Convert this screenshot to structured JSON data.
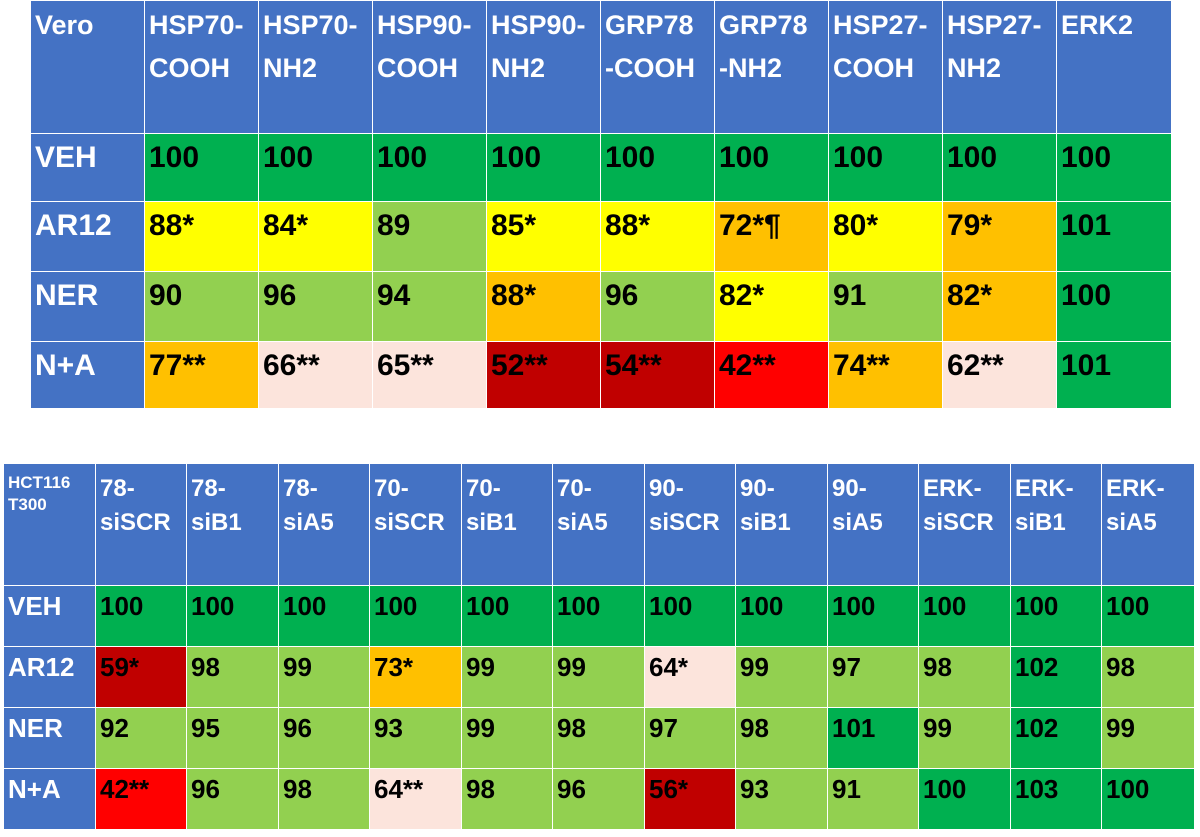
{
  "table1": {
    "corner": "Vero",
    "headers": [
      [
        "HSP70-",
        "COOH"
      ],
      [
        "HSP70-",
        "NH2"
      ],
      [
        "HSP90-",
        "COOH"
      ],
      [
        "HSP90-",
        "NH2"
      ],
      [
        "GRP78",
        "-COOH"
      ],
      [
        "GRP78",
        "-NH2"
      ],
      [
        "HSP27-",
        "COOH"
      ],
      [
        "HSP27-",
        "NH2"
      ],
      [
        "ERK2",
        ""
      ]
    ],
    "rows": [
      {
        "label": "VEH",
        "cells": [
          "100",
          "100",
          "100",
          "100",
          "100",
          "100",
          "100",
          "100",
          "100"
        ],
        "colors": [
          "dg",
          "dg",
          "dg",
          "dg",
          "dg",
          "dg",
          "dg",
          "dg",
          "dg"
        ]
      },
      {
        "label": "AR12",
        "cells": [
          "88*",
          "84*",
          "89",
          "85*",
          "88*",
          "72*¶",
          "80*",
          "79*",
          "101"
        ],
        "colors": [
          "y",
          "y",
          "lg",
          "y",
          "y",
          "o",
          "y",
          "o",
          "dg"
        ]
      },
      {
        "label": "NER",
        "cells": [
          "90",
          "96",
          "94",
          "88*",
          "96",
          "82*",
          "91",
          "82*",
          "100"
        ],
        "colors": [
          "lg",
          "lg",
          "lg",
          "o",
          "lg",
          "y",
          "lg",
          "o",
          "dg"
        ]
      },
      {
        "label": "N+A",
        "cells": [
          "77**",
          "66**",
          "65**",
          "52**",
          "54**",
          "42**",
          "74**",
          "62**",
          "101"
        ],
        "colors": [
          "o",
          "p",
          "p",
          "dr",
          "dr",
          "r",
          "o",
          "p",
          "dg"
        ]
      }
    ]
  },
  "table2": {
    "corner": [
      "HCT116",
      "T300"
    ],
    "headers": [
      [
        "78-",
        "siSCR"
      ],
      [
        "78-",
        "siB1"
      ],
      [
        "78-",
        "siA5"
      ],
      [
        "70-",
        "siSCR"
      ],
      [
        "70-",
        "siB1"
      ],
      [
        "70-",
        "siA5"
      ],
      [
        "90-",
        "siSCR"
      ],
      [
        "90-",
        "siB1"
      ],
      [
        "90-",
        "siA5"
      ],
      [
        "ERK-",
        "siSCR"
      ],
      [
        "ERK-",
        "siB1"
      ],
      [
        "ERK-",
        "siA5"
      ]
    ],
    "rows": [
      {
        "label": "VEH",
        "cells": [
          "100",
          "100",
          "100",
          "100",
          "100",
          "100",
          "100",
          "100",
          "100",
          "100",
          "100",
          "100"
        ],
        "colors": [
          "dg",
          "dg",
          "dg",
          "dg",
          "dg",
          "dg",
          "dg",
          "dg",
          "dg",
          "dg",
          "dg",
          "dg"
        ]
      },
      {
        "label": "AR12",
        "cells": [
          "59*",
          "98",
          "99",
          "73*",
          "99",
          "99",
          "64*",
          "99",
          "97",
          "98",
          "102",
          "98"
        ],
        "colors": [
          "dr",
          "lg",
          "lg",
          "o",
          "lg",
          "lg",
          "p",
          "lg",
          "lg",
          "lg",
          "dg",
          "lg"
        ]
      },
      {
        "label": "NER",
        "cells": [
          "92",
          "95",
          "96",
          "93",
          "99",
          "98",
          "97",
          "98",
          "101",
          "99",
          "102",
          "99"
        ],
        "colors": [
          "lg",
          "lg",
          "lg",
          "lg",
          "lg",
          "lg",
          "lg",
          "lg",
          "dg",
          "lg",
          "dg",
          "lg"
        ]
      },
      {
        "label": "N+A",
        "cells": [
          "42**",
          "96",
          "98",
          "64**",
          "98",
          "96",
          "56*",
          "93",
          "91",
          "100",
          "103",
          "100"
        ],
        "colors": [
          "r",
          "lg",
          "lg",
          "p",
          "lg",
          "lg",
          "dr",
          "lg",
          "lg",
          "dg",
          "dg",
          "dg"
        ]
      }
    ]
  },
  "legend_colors": {
    "dg": "#00b050",
    "lg": "#92d050",
    "y": "#ffff00",
    "o": "#ffc000",
    "r": "#ff0000",
    "dr": "#c00000",
    "p": "#fce4dc",
    "header": "#4472c4"
  }
}
